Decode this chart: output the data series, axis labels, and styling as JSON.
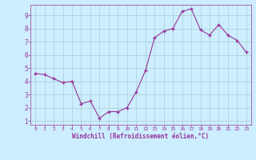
{
  "x": [
    0,
    1,
    2,
    3,
    4,
    5,
    6,
    7,
    8,
    9,
    10,
    11,
    12,
    13,
    14,
    15,
    16,
    17,
    18,
    19,
    20,
    21,
    22,
    23
  ],
  "y": [
    4.6,
    4.5,
    4.2,
    3.9,
    4.0,
    2.3,
    2.5,
    1.2,
    1.7,
    1.7,
    2.0,
    3.2,
    4.8,
    7.3,
    7.8,
    8.0,
    9.3,
    9.5,
    7.9,
    7.5,
    8.3,
    7.5,
    7.1,
    6.2
  ],
  "line_color": "#993399",
  "marker_color": "#993399",
  "bg_color": "#cceeff",
  "grid_color": "#aacccc",
  "xlabel": "Windchill (Refroidissement éolien,°C)",
  "xlabel_color": "#993399",
  "tick_color": "#993399",
  "ylim": [
    0.7,
    9.8
  ],
  "xlim": [
    -0.5,
    23.5
  ],
  "yticks": [
    1,
    2,
    3,
    4,
    5,
    6,
    7,
    8,
    9
  ],
  "xticks": [
    0,
    1,
    2,
    3,
    4,
    5,
    6,
    7,
    8,
    9,
    10,
    11,
    12,
    13,
    14,
    15,
    16,
    17,
    18,
    19,
    20,
    21,
    22,
    23
  ]
}
